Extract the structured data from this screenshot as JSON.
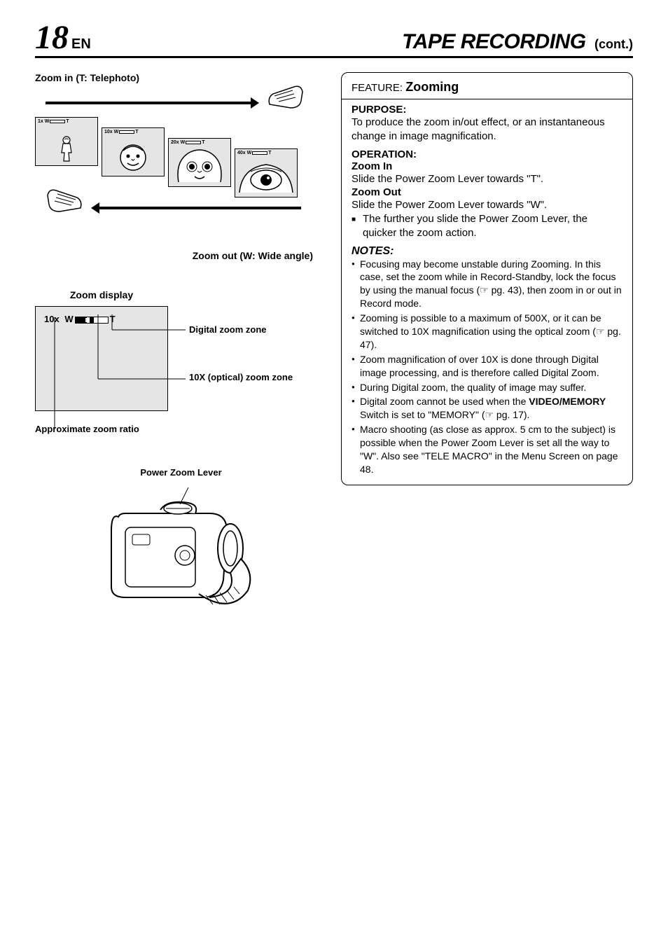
{
  "header": {
    "page_number": "18",
    "lang": "EN",
    "section_title": "TAPE RECORDING",
    "cont": "(cont.)"
  },
  "left": {
    "zoom_in_label": "Zoom in (T: Telephoto)",
    "zoom_out_label": "Zoom out (W: Wide angle)",
    "frames": [
      {
        "mag": "1x",
        "w": "W",
        "t": "T"
      },
      {
        "mag": "10x",
        "w": "W",
        "t": "T"
      },
      {
        "mag": "20x",
        "w": "W",
        "t": "T"
      },
      {
        "mag": "40x",
        "w": "W",
        "t": "T"
      }
    ],
    "zoom_display_label": "Zoom display",
    "zoom_display_value": "10x",
    "zoom_display_w": "W",
    "zoom_display_t": "T",
    "digital_zone_label": "Digital zoom zone",
    "optical_zone_label": "10X (optical) zoom zone",
    "approx_ratio_label": "Approximate zoom ratio",
    "power_zoom_label": "Power Zoom Lever"
  },
  "right": {
    "feature_prefix": "FEATURE:",
    "feature_name": "Zooming",
    "purpose_heading": "PURPOSE:",
    "purpose_text": "To produce the zoom in/out effect, or an instantaneous change in image magnification.",
    "operation_heading": "OPERATION:",
    "zoom_in_label": "Zoom In",
    "zoom_in_text": "Slide the Power Zoom Lever towards \"T\".",
    "zoom_out_label": "Zoom Out",
    "zoom_out_text": "Slide the Power Zoom Lever towards \"W\".",
    "further_text": "The further you slide the Power Zoom Lever, the quicker the zoom action.",
    "notes_heading": "NOTES:",
    "notes": [
      "Focusing may become unstable during Zooming. In this case, set the zoom while in Record-Standby, lock the focus by using the manual focus (☞ pg. 43), then zoom in or out in Record mode.",
      "Zooming is possible to a maximum of 500X, or it can be switched to 10X magnification using the optical zoom (☞ pg. 47).",
      "Zoom magnification of over 10X is done through Digital image processing, and is therefore called Digital Zoom.",
      "During Digital zoom, the quality of image may suffer.",
      "Digital zoom cannot be used when the <b>VIDEO/MEMORY</b> Switch is set to \"MEMORY\" (☞ pg. 17).",
      "Macro shooting (as close as approx. 5 cm to the subject) is possible when the Power Zoom Lever is set all the way to \"W\". Also see \"TELE MACRO\" in the Menu Screen on page 48."
    ]
  },
  "colors": {
    "text": "#000000",
    "bg": "#ffffff",
    "frame_bg": "#e5e5e5"
  }
}
